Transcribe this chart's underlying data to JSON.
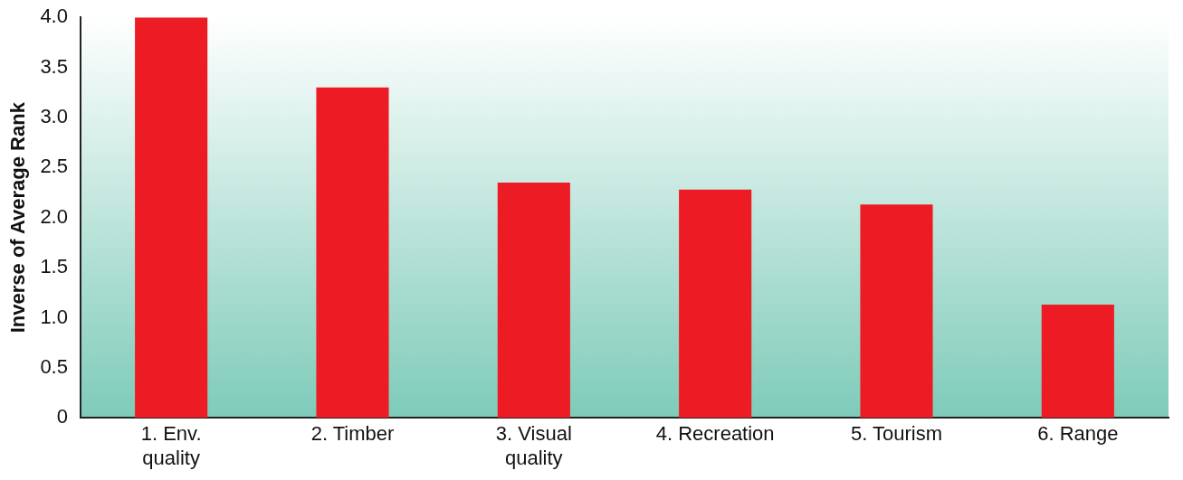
{
  "chart_data": {
    "type": "bar",
    "ylabel": "Inverse of Average Rank",
    "categories": [
      "1. Env. quality",
      "2. Timber",
      "3. Visual quality",
      "4. Recreation",
      "5. Tourism",
      "6. Range"
    ],
    "values": [
      4.0,
      3.3,
      2.35,
      2.28,
      2.13,
      1.13
    ],
    "color": "#ed1c24",
    "ylim": [
      0,
      4
    ],
    "yticks": [
      {
        "value": 0,
        "label": "0"
      },
      {
        "value": 0.5,
        "label": "0.5"
      },
      {
        "value": 1,
        "label": "1.0"
      },
      {
        "value": 1.5,
        "label": "1.5"
      },
      {
        "value": 2,
        "label": "2.0"
      },
      {
        "value": 2.5,
        "label": "2.5"
      },
      {
        "value": 3,
        "label": "3.0"
      },
      {
        "value": 3.5,
        "label": "3.5"
      },
      {
        "value": 4,
        "label": "4.0"
      }
    ],
    "grid": false,
    "legend": false
  }
}
